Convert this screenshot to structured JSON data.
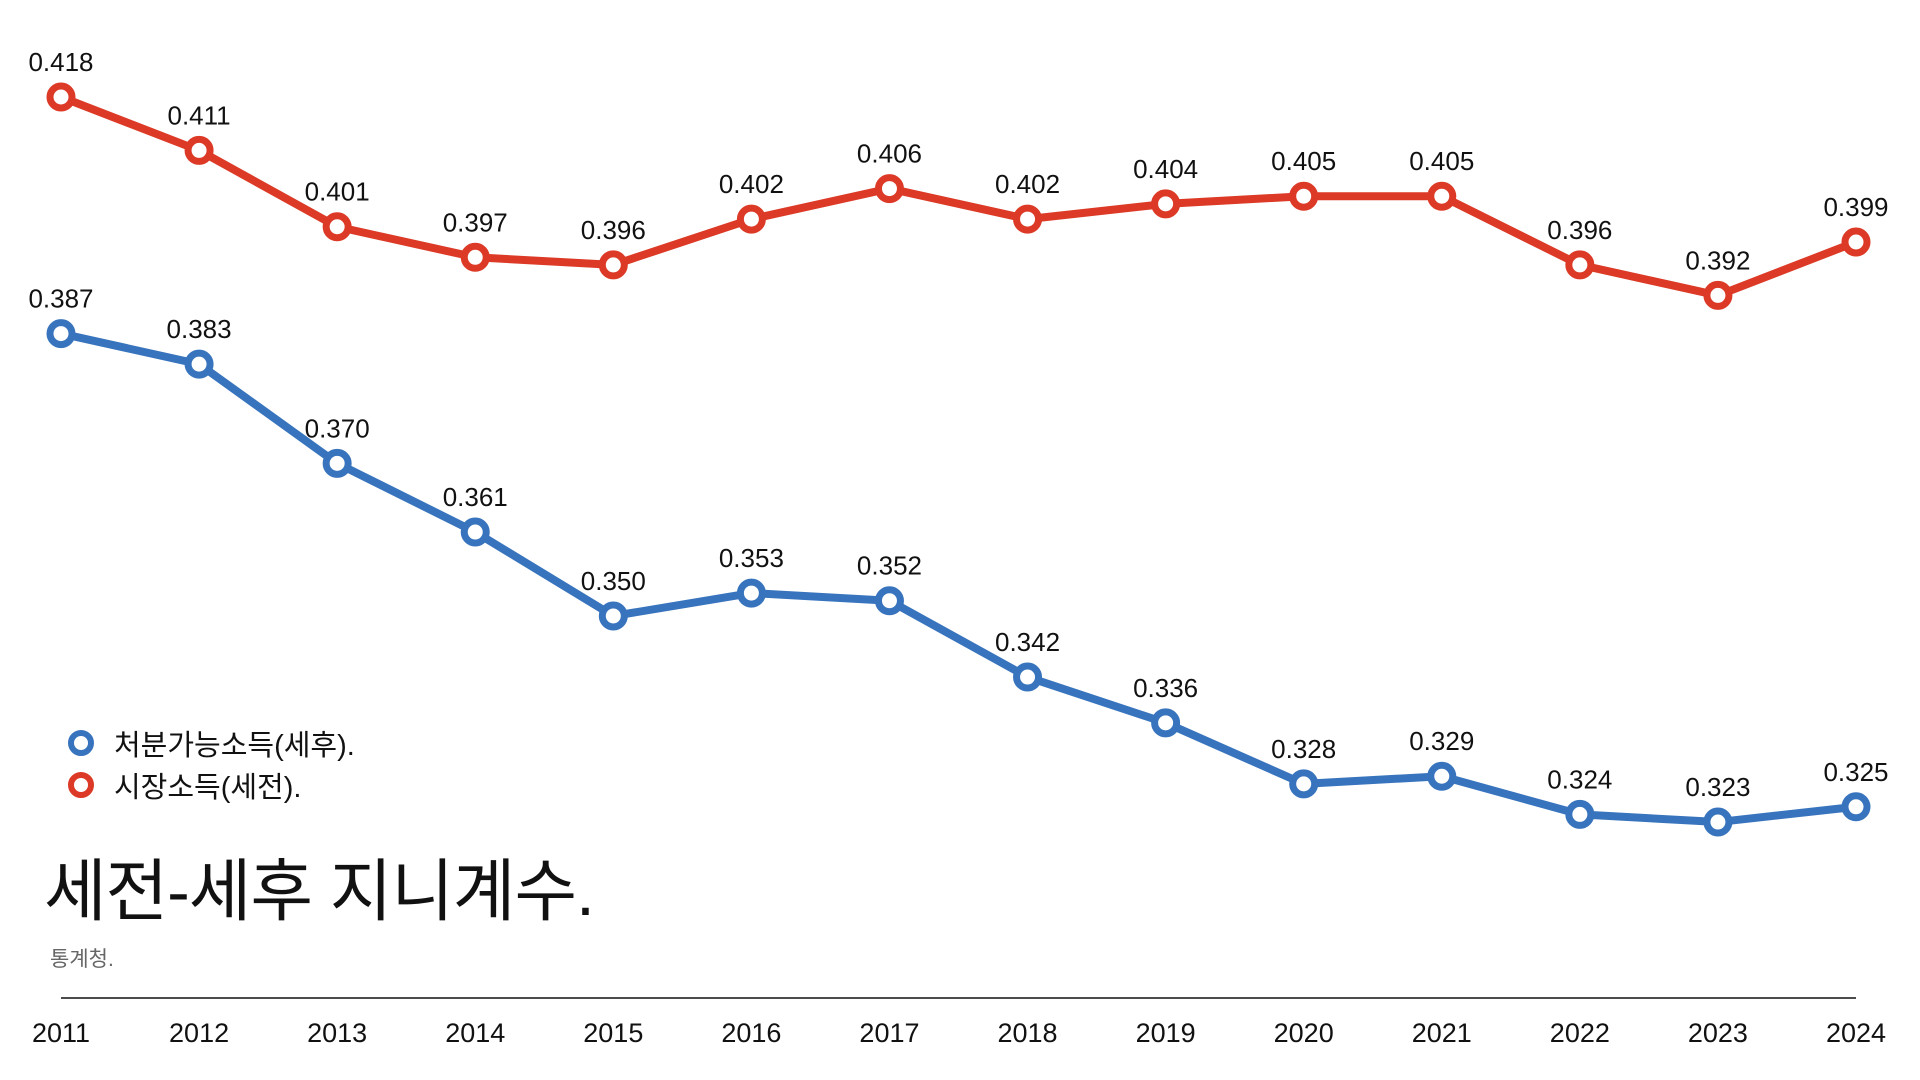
{
  "chart_data": {
    "type": "line",
    "title": "세전-세후 지니계수.",
    "source": "통계청.",
    "categories": [
      "2011",
      "2012",
      "2013",
      "2014",
      "2015",
      "2016",
      "2017",
      "2018",
      "2019",
      "2020",
      "2021",
      "2022",
      "2023",
      "2024"
    ],
    "series": [
      {
        "name": "처분가능소득(세후).",
        "color": "#3874bd",
        "values": [
          0.387,
          0.383,
          0.37,
          0.361,
          0.35,
          0.353,
          0.352,
          0.342,
          0.336,
          0.328,
          0.329,
          0.324,
          0.323,
          0.325
        ]
      },
      {
        "name": "시장소득(세전).",
        "color": "#dc3a26",
        "values": [
          0.418,
          0.411,
          0.401,
          0.397,
          0.396,
          0.402,
          0.406,
          0.402,
          0.404,
          0.405,
          0.405,
          0.396,
          0.392,
          0.399
        ]
      }
    ],
    "legend_position": "bottom-left",
    "grid": false,
    "y_axis_visible": false
  }
}
